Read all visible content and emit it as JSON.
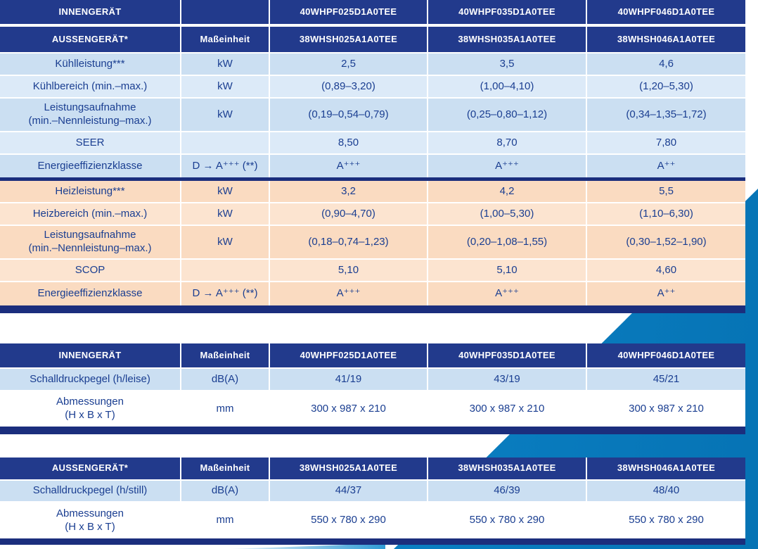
{
  "colors": {
    "header_navy": "#223a8c",
    "bar_navy": "#1b2e7d",
    "row_light_blue": "#cbdff2",
    "row_light_blue_alt": "#dceaf8",
    "row_peach": "#fadbc1",
    "row_peach_alt": "#fce4d0",
    "swoosh_blue": "#0b82c6",
    "body_text_navy": "#1a3e91"
  },
  "table_main": {
    "header_indoor": {
      "label": "INNENGERÄT",
      "unit": "",
      "models": [
        "40WHPF025D1A0TEE",
        "40WHPF035D1A0TEE",
        "40WHPF046D1A0TEE"
      ]
    },
    "header_outdoor": {
      "label": "AUSSENGERÄT*",
      "unit": "Maßeinheit",
      "models": [
        "38WHSH025A1A0TEE",
        "38WHSH035A1A0TEE",
        "38WHSH046A1A0TEE"
      ]
    },
    "cooling_rows": [
      {
        "label": "Kühlleistung***",
        "unit": "kW",
        "values": [
          "2,5",
          "3,5",
          "4,6"
        ]
      },
      {
        "label": "Kühlbereich (min.–max.)",
        "unit": "kW",
        "values": [
          "(0,89–3,20)",
          "(1,00–4,10)",
          "(1,20–5,30)"
        ]
      },
      {
        "label": "Leistungsaufnahme\n(min.–Nennleistung–max.)",
        "unit": "kW",
        "values": [
          "(0,19–0,54–0,79)",
          "(0,25–0,80–1,12)",
          "(0,34–1,35–1,72)"
        ]
      },
      {
        "label": "SEER",
        "unit": "",
        "values": [
          "8,50",
          "8,70",
          "7,80"
        ]
      },
      {
        "label": "Energieeffizienzklasse",
        "unit": "D → A⁺⁺⁺ (**)",
        "values": [
          "A⁺⁺⁺",
          "A⁺⁺⁺",
          "A⁺⁺"
        ]
      }
    ],
    "heating_rows": [
      {
        "label": "Heizleistung***",
        "unit": "kW",
        "values": [
          "3,2",
          "4,2",
          "5,5"
        ]
      },
      {
        "label": "Heizbereich (min.–max.)",
        "unit": "kW",
        "values": [
          "(0,90–4,70)",
          "(1,00–5,30)",
          "(1,10–6,30)"
        ]
      },
      {
        "label": "Leistungsaufnahme\n(min.–Nennleistung–max.)",
        "unit": "kW",
        "values": [
          "(0,18–0,74–1,23)",
          "(0,20–1,08–1,55)",
          "(0,30–1,52–1,90)"
        ]
      },
      {
        "label": "SCOP",
        "unit": "",
        "values": [
          "5,10",
          "5,10",
          "4,60"
        ]
      },
      {
        "label": "Energieeffizienzklasse",
        "unit": "D → A⁺⁺⁺ (**)",
        "values": [
          "A⁺⁺⁺",
          "A⁺⁺⁺",
          "A⁺⁺"
        ]
      }
    ]
  },
  "table_indoor": {
    "header": {
      "label": "INNENGERÄT",
      "unit": "Maßeinheit",
      "models": [
        "40WHPF025D1A0TEE",
        "40WHPF035D1A0TEE",
        "40WHPF046D1A0TEE"
      ]
    },
    "rows": [
      {
        "label": "Schalldruckpegel (h/leise)",
        "unit": "dB(A)",
        "values": [
          "41/19",
          "43/19",
          "45/21"
        ]
      },
      {
        "label": "Abmessungen\n(H x B x T)",
        "unit": "mm",
        "values": [
          "300 x 987 x 210",
          "300 x 987 x 210",
          "300 x 987 x 210"
        ]
      }
    ]
  },
  "table_outdoor": {
    "header": {
      "label": "AUSSENGERÄT*",
      "unit": "Maßeinheit",
      "models": [
        "38WHSH025A1A0TEE",
        "38WHSH035A1A0TEE",
        "38WHSH046A1A0TEE"
      ]
    },
    "rows": [
      {
        "label": "Schalldruckpegel (h/still)",
        "unit": "dB(A)",
        "values": [
          "44/37",
          "46/39",
          "48/40"
        ]
      },
      {
        "label": "Abmessungen\n(H x B x T)",
        "unit": "mm",
        "values": [
          "550 x 780 x 290",
          "550 x 780 x 290",
          "550 x 780 x 290"
        ]
      }
    ]
  }
}
